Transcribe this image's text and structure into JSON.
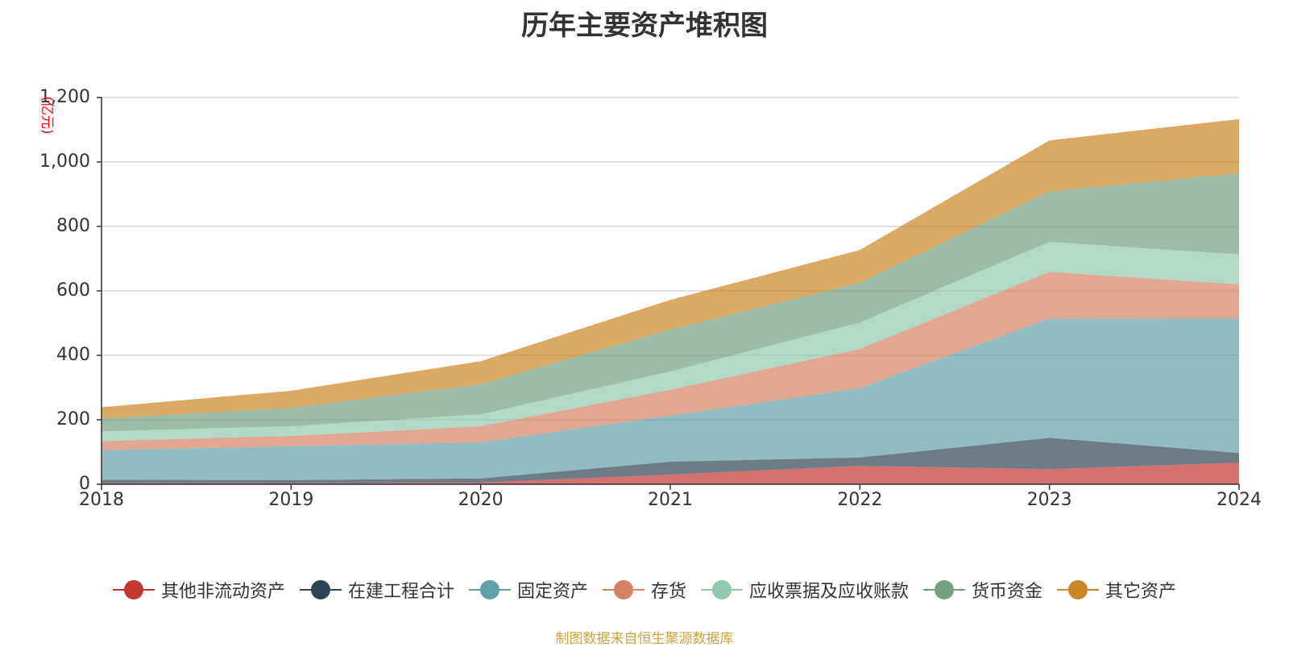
{
  "chart_data": {
    "type": "area",
    "title": "历年主要资产堆积图",
    "ylabel": "(亿元)",
    "x": [
      "2018",
      "2019",
      "2020",
      "2021",
      "2022",
      "2023",
      "2024"
    ],
    "ylim": [
      0,
      1200
    ],
    "yticks": [
      "0",
      "200",
      "400",
      "600",
      "800",
      "1,000",
      "1,200"
    ],
    "grid": true,
    "stacked": true,
    "legend_position": "bottom",
    "series": [
      {
        "name": "其他非流动资产",
        "color": "#c23531",
        "values": [
          3,
          3,
          5,
          30,
          57,
          47,
          67
        ]
      },
      {
        "name": "在建工程合计",
        "color": "#2f4554",
        "values": [
          11,
          10,
          13,
          40,
          26,
          97,
          30
        ]
      },
      {
        "name": "固定资产",
        "color": "#61a0a8",
        "values": [
          92,
          105,
          112,
          143,
          215,
          370,
          418
        ]
      },
      {
        "name": "存货",
        "color": "#d48265",
        "values": [
          28,
          32,
          50,
          80,
          122,
          145,
          105
        ]
      },
      {
        "name": "应收票据及应收账款",
        "color": "#91c7ae",
        "values": [
          30,
          30,
          37,
          57,
          82,
          93,
          93
        ]
      },
      {
        "name": "货币资金",
        "color": "#749f83",
        "values": [
          40,
          57,
          93,
          130,
          123,
          157,
          252
        ]
      },
      {
        "name": "其它资产",
        "color": "#ca8622",
        "values": [
          35,
          53,
          72,
          92,
          102,
          158,
          168
        ]
      }
    ]
  },
  "source_note": "制图数据来自恒生聚源数据库"
}
